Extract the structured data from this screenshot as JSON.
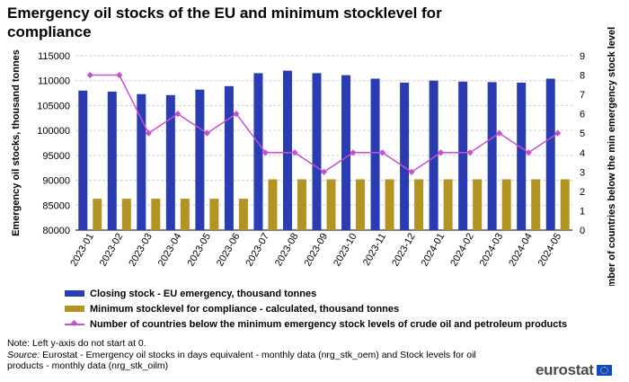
{
  "title": "Emergency oil stocks of the EU and minimum stocklevel for compliance",
  "chart_data": {
    "type": "bar",
    "categories": [
      "2023-01",
      "2023-02",
      "2023-03",
      "2023-04",
      "2023-05",
      "2023-06",
      "2023-07",
      "2023-08",
      "2023-09",
      "2023-10",
      "2023-11",
      "2023-12",
      "2024-01",
      "2024-02",
      "2024-03",
      "2024-04",
      "2024-05"
    ],
    "series": [
      {
        "name": "Closing stock - EU emergency, thousand tonnes",
        "type": "bar",
        "axis": "left",
        "color": "#2a3cb1",
        "values": [
          108000,
          107800,
          107300,
          107100,
          108200,
          108900,
          111500,
          112000,
          111500,
          111100,
          110400,
          109600,
          110000,
          109800,
          109700,
          109600,
          110400
        ]
      },
      {
        "name": "Minimum stocklevel for compliance - calculated, thousand tonnes",
        "type": "bar",
        "axis": "left",
        "color": "#b39422",
        "values": [
          86300,
          86300,
          86300,
          86300,
          86300,
          86300,
          90200,
          90200,
          90200,
          90200,
          90200,
          90200,
          90200,
          90200,
          90200,
          90200,
          90200
        ]
      },
      {
        "name": "Number of countries below the minimum emergency stock levels of crude oil and petroleum products",
        "type": "line",
        "axis": "right",
        "color": "#c550d1",
        "values": [
          8,
          8,
          5,
          6,
          5,
          6,
          4,
          4,
          3,
          4,
          4,
          3,
          4,
          4,
          5,
          4,
          5
        ]
      }
    ],
    "y_left": {
      "label": "Emergency oil stocks, thousand tonnes",
      "min": 80000,
      "max": 115000,
      "ticks": [
        80000,
        85000,
        90000,
        95000,
        100000,
        105000,
        110000,
        115000
      ],
      "tick_labels": [
        "80000",
        "85000",
        "90000",
        "95000",
        "100000",
        "105000",
        "110000",
        "115000"
      ]
    },
    "y_right": {
      "label": "Number of countries below the min emergency stock level",
      "min": 0,
      "max": 9,
      "ticks": [
        0,
        1,
        2,
        3,
        4,
        5,
        6,
        7,
        8,
        9
      ],
      "tick_labels": [
        "0",
        "1",
        "2",
        "3",
        "4",
        "5",
        "6",
        "7",
        "8",
        "9"
      ]
    },
    "grid": true,
    "legend_position": "bottom"
  },
  "notes": {
    "line1": "Note: Left y-axis do not start at 0.",
    "source_label": "Source:",
    "source_text": " Eurostat - Emergency oil stocks in days equivalent  - monthly  data (nrg_stk_oem) and Stock levels for oil products - monthly data (nrg_stk_oilm)"
  },
  "logo": {
    "text": "eurostat"
  }
}
